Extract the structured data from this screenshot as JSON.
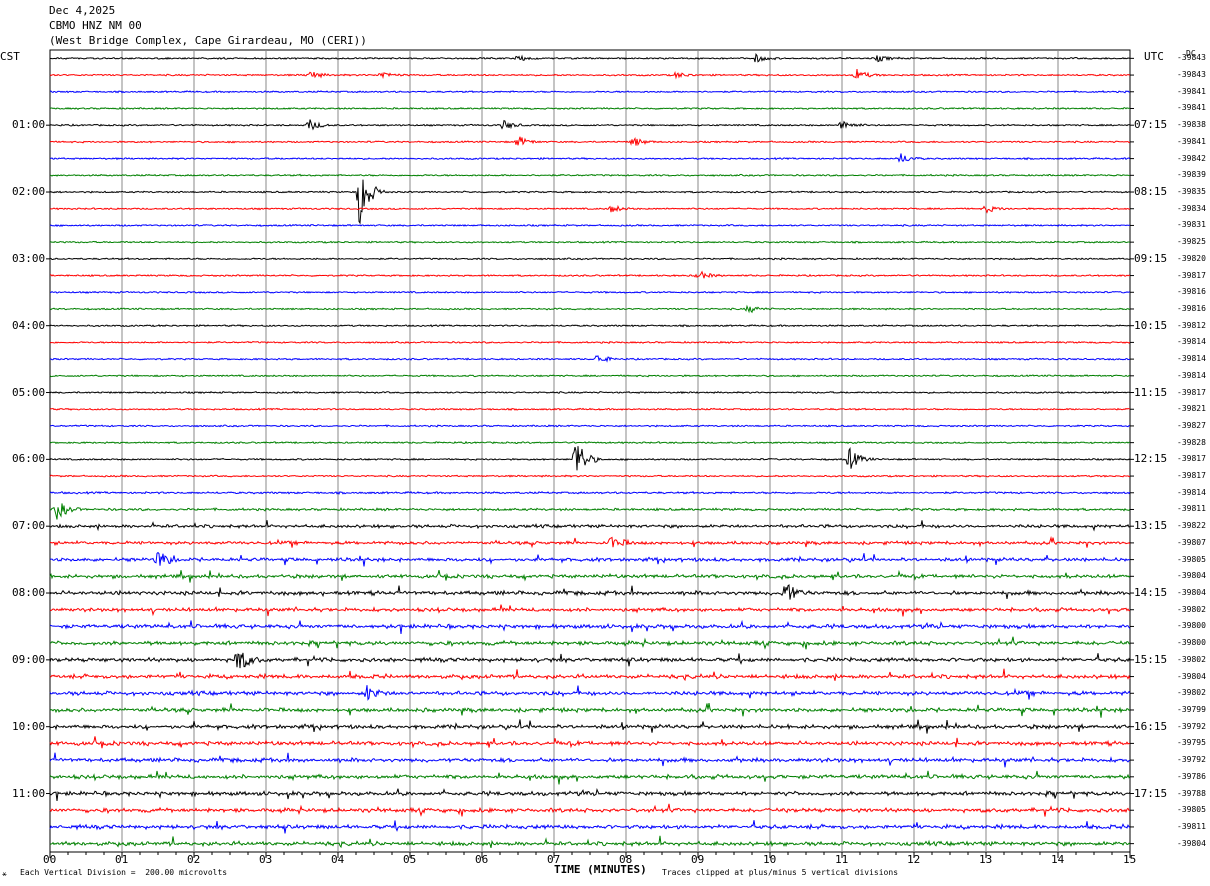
{
  "header": {
    "date": "Dec 4,2025",
    "station": "CBMO HNZ NM 00",
    "location": "(West Bridge Complex, Cape Girardeau, MO (CERI))"
  },
  "left_tz": "CST",
  "right_tz": "UTC",
  "dc_label": "DC",
  "left_hours": [
    "01:00",
    "02:00",
    "03:00",
    "04:00",
    "05:00",
    "06:00",
    "07:00",
    "08:00",
    "09:00",
    "10:00",
    "11:00"
  ],
  "right_hours": [
    "07:15",
    "08:15",
    "09:15",
    "10:15",
    "11:15",
    "12:15",
    "13:15",
    "14:15",
    "15:15",
    "16:15",
    "17:15"
  ],
  "offsets": [
    "-39843",
    "-39843",
    "-39841",
    "-39841",
    "-39838",
    "-39841",
    "-39842",
    "-39839",
    "-39835",
    "-39834",
    "-39831",
    "-39825",
    "-39820",
    "-39817",
    "-39816",
    "-39816",
    "-39812",
    "-39814",
    "-39814",
    "-39814",
    "-39817",
    "-39821",
    "-39827",
    "-39828",
    "-39817",
    "-39817",
    "-39814",
    "-39811",
    "-39822",
    "-39807",
    "-39805",
    "-39804",
    "-39804",
    "-39802",
    "-39800",
    "-39800",
    "-39802",
    "-39804",
    "-39802",
    "-39799",
    "-39792",
    "-39795",
    "-39792",
    "-39786",
    "-39788",
    "-39805",
    "-39811",
    "-39804"
  ],
  "x_ticks": [
    "00",
    "01",
    "02",
    "03",
    "04",
    "05",
    "06",
    "07",
    "08",
    "09",
    "10",
    "11",
    "12",
    "13",
    "14",
    "15"
  ],
  "x_title": "TIME (MINUTES)",
  "footer_left": "Each Vertical Division =  200.00 microvolts",
  "footer_right": "Traces clipped at plus/minus 5 vertical divisions",
  "colors": {
    "trace_cycle": [
      "#000000",
      "#ff0000",
      "#0000ff",
      "#008000"
    ],
    "grid": "#888888"
  },
  "chart_data": {
    "type": "seismogram",
    "x_range": [
      0,
      15
    ],
    "x_unit": "minutes",
    "trace_count": 48,
    "trace_length_minutes": 15,
    "start_time_cst": "00:45",
    "noise_level_by_trace": [
      1,
      1,
      1,
      1,
      1,
      1,
      1,
      1,
      1,
      1,
      1,
      1,
      1,
      1,
      1,
      1,
      1,
      1,
      1,
      1,
      1,
      1,
      1,
      1,
      1,
      1,
      1.5,
      2,
      3,
      3,
      3.5,
      3.5,
      4,
      3.5,
      4,
      4,
      4,
      4,
      4,
      4,
      4,
      4,
      4,
      4,
      4,
      4,
      4,
      4
    ],
    "events": [
      {
        "trace": 0,
        "minute": 6.5,
        "amp": 3
      },
      {
        "trace": 0,
        "minute": 9.8,
        "amp": 4
      },
      {
        "trace": 0,
        "minute": 11.5,
        "amp": 3
      },
      {
        "trace": 1,
        "minute": 3.6,
        "amp": 5
      },
      {
        "trace": 1,
        "minute": 4.6,
        "amp": 4
      },
      {
        "trace": 1,
        "minute": 8.7,
        "amp": 3
      },
      {
        "trace": 1,
        "minute": 11.2,
        "amp": 6
      },
      {
        "trace": 4,
        "minute": 3.6,
        "amp": 6
      },
      {
        "trace": 4,
        "minute": 6.3,
        "amp": 5
      },
      {
        "trace": 4,
        "minute": 11.0,
        "amp": 6
      },
      {
        "trace": 5,
        "minute": 6.5,
        "amp": 6
      },
      {
        "trace": 5,
        "minute": 8.1,
        "amp": 5
      },
      {
        "trace": 6,
        "minute": 11.8,
        "amp": 6
      },
      {
        "trace": 8,
        "minute": 4.3,
        "amp": 35
      },
      {
        "trace": 9,
        "minute": 7.8,
        "amp": 4
      },
      {
        "trace": 9,
        "minute": 13.0,
        "amp": 4
      },
      {
        "trace": 13,
        "minute": 9.0,
        "amp": 5
      },
      {
        "trace": 15,
        "minute": 9.7,
        "amp": 4
      },
      {
        "trace": 18,
        "minute": 7.6,
        "amp": 5
      },
      {
        "trace": 24,
        "minute": 7.3,
        "amp": 25
      },
      {
        "trace": 24,
        "minute": 11.1,
        "amp": 12
      },
      {
        "trace": 27,
        "minute": 0.1,
        "amp": 10
      },
      {
        "trace": 29,
        "minute": 7.8,
        "amp": 8
      },
      {
        "trace": 30,
        "minute": 1.5,
        "amp": 10
      },
      {
        "trace": 32,
        "minute": 10.2,
        "amp": 14
      },
      {
        "trace": 36,
        "minute": 2.6,
        "amp": 14
      },
      {
        "trace": 38,
        "minute": 4.4,
        "amp": 8
      }
    ]
  }
}
